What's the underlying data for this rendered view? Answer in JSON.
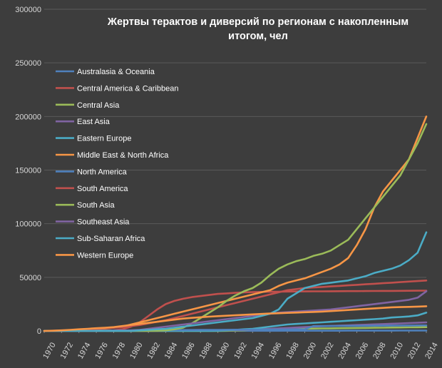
{
  "chart_data": {
    "type": "line",
    "title_line1": "Жертвы терактов и диверсий по регионам с накопленным",
    "title_line2": "итогом, чел",
    "ylim": [
      0,
      300000
    ],
    "y_ticks": [
      0,
      50000,
      100000,
      150000,
      200000,
      250000,
      300000
    ],
    "y_tick_labels": [
      "0",
      "50000",
      "100000",
      "150000",
      "200000",
      "250000",
      "300000"
    ],
    "x_tick_labels": [
      "1970",
      "1972",
      "1974",
      "1976",
      "1978",
      "1980",
      "1982",
      "1984",
      "1986",
      "1988",
      "1990",
      "1992",
      "1994",
      "1996",
      "1998",
      "2000",
      "2002",
      "2004",
      "2006",
      "2008",
      "2010",
      "2012",
      "2014"
    ],
    "x": [
      1970,
      1971,
      1972,
      1973,
      1974,
      1975,
      1976,
      1977,
      1978,
      1979,
      1980,
      1981,
      1982,
      1983,
      1984,
      1985,
      1986,
      1987,
      1988,
      1989,
      1990,
      1991,
      1992,
      1993,
      1994,
      1995,
      1996,
      1997,
      1998,
      1999,
      2000,
      2001,
      2002,
      2003,
      2004,
      2005,
      2006,
      2007,
      2008,
      2009,
      2010,
      2011,
      2012,
      2013,
      2014
    ],
    "series": [
      {
        "name": "Australasia & Oceania",
        "color": "#4f81bd",
        "values": [
          0,
          0,
          0,
          0,
          0,
          0,
          0,
          0,
          0,
          0,
          0,
          0,
          10,
          20,
          30,
          40,
          50,
          60,
          70,
          80,
          90,
          100,
          110,
          120,
          130,
          140,
          150,
          160,
          170,
          180,
          190,
          200,
          210,
          220,
          230,
          240,
          250,
          260,
          270,
          280,
          290,
          300,
          310,
          320,
          330
        ]
      },
      {
        "name": "Central America & Caribbean",
        "color": "#c0504d",
        "values": [
          0,
          0,
          0,
          0,
          0,
          0,
          100,
          300,
          600,
          1500,
          4000,
          8000,
          14000,
          20000,
          25000,
          28000,
          30000,
          31500,
          32500,
          33500,
          34500,
          35000,
          35500,
          36000,
          36200,
          36400,
          36500,
          36600,
          36700,
          36800,
          36850,
          36900,
          36950,
          37000,
          37050,
          37100,
          37150,
          37200,
          37250,
          37300,
          37350,
          37400,
          37450,
          37500,
          37550
        ]
      },
      {
        "name": "Central Asia",
        "color": "#9bbb59",
        "values": [
          0,
          0,
          0,
          0,
          0,
          0,
          0,
          0,
          0,
          0,
          0,
          0,
          0,
          0,
          0,
          0,
          0,
          0,
          0,
          0,
          0,
          100,
          300,
          600,
          1200,
          1500,
          1700,
          1800,
          1900,
          2000,
          2100,
          2200,
          2300,
          2400,
          2500,
          2600,
          2700,
          2800,
          2900,
          3000,
          3100,
          3200,
          3300,
          3400,
          3500
        ]
      },
      {
        "name": "East Asia",
        "color": "#8064a2",
        "values": [
          0,
          0,
          0,
          0,
          0,
          0,
          0,
          0,
          0,
          0,
          0,
          0,
          0,
          0,
          50,
          100,
          200,
          300,
          400,
          500,
          600,
          700,
          800,
          900,
          1000,
          1500,
          2000,
          2400,
          2800,
          3200,
          3600,
          4000,
          4300,
          4600,
          4900,
          5200,
          5500,
          5800,
          6100,
          6400,
          6700,
          7000,
          7300,
          7600,
          7900
        ]
      },
      {
        "name": "Eastern Europe",
        "color": "#4bacc6",
        "values": [
          0,
          0,
          0,
          0,
          0,
          0,
          0,
          0,
          0,
          0,
          0,
          0,
          0,
          0,
          0,
          0,
          0,
          0,
          0,
          0,
          200,
          500,
          1000,
          1500,
          2000,
          3000,
          4000,
          5000,
          6000,
          6500,
          7000,
          7500,
          8000,
          8500,
          9000,
          9500,
          10000,
          10500,
          11000,
          11500,
          12500,
          13000,
          13500,
          14500,
          17000
        ]
      },
      {
        "name": "Middle East & North Africa",
        "color": "#f79646",
        "values": [
          0,
          100,
          200,
          400,
          700,
          1000,
          1500,
          2200,
          3000,
          4000,
          6000,
          8000,
          10000,
          12000,
          14000,
          16000,
          18000,
          20000,
          22000,
          24000,
          26000,
          28000,
          30000,
          32000,
          34000,
          36000,
          38000,
          42000,
          45000,
          47000,
          49000,
          52000,
          55000,
          58000,
          62000,
          68000,
          80000,
          95000,
          115000,
          130000,
          140000,
          150000,
          160000,
          180000,
          200000
        ]
      },
      {
        "name": "North America",
        "color": "#4f81bd",
        "values": [
          0,
          50,
          100,
          150,
          200,
          250,
          300,
          350,
          400,
          450,
          500,
          550,
          600,
          650,
          700,
          750,
          800,
          850,
          900,
          950,
          1000,
          1050,
          1100,
          1150,
          1200,
          1250,
          1300,
          1350,
          1400,
          1450,
          1500,
          4500,
          4550,
          4600,
          4650,
          4700,
          4750,
          4800,
          4850,
          4900,
          4950,
          5000,
          5050,
          5100,
          5150
        ]
      },
      {
        "name": "South America",
        "color": "#c0504d",
        "values": [
          0,
          100,
          300,
          600,
          1000,
          1500,
          2000,
          2500,
          3000,
          3500,
          4500,
          5500,
          7000,
          8500,
          10000,
          12000,
          14000,
          16000,
          18000,
          20000,
          22000,
          24000,
          26000,
          28000,
          30000,
          32000,
          34000,
          36000,
          38000,
          39000,
          40000,
          40500,
          41000,
          41500,
          42000,
          42500,
          43000,
          43500,
          44000,
          44500,
          45000,
          45500,
          46000,
          46500,
          47000
        ]
      },
      {
        "name": "South Asia",
        "color": "#9bbb59",
        "values": [
          0,
          0,
          0,
          0,
          0,
          0,
          0,
          0,
          0,
          0,
          0,
          0,
          0,
          100,
          500,
          1500,
          3000,
          7000,
          12000,
          17000,
          22000,
          28000,
          33000,
          37000,
          40000,
          45000,
          52000,
          58000,
          62000,
          65000,
          67000,
          70000,
          72000,
          75000,
          80000,
          85000,
          95000,
          105000,
          115000,
          125000,
          135000,
          145000,
          160000,
          175000,
          193000
        ]
      },
      {
        "name": "Southeast Asia",
        "color": "#8064a2",
        "values": [
          0,
          0,
          0,
          0,
          0,
          0,
          0,
          0,
          100,
          300,
          500,
          1000,
          2000,
          3000,
          4000,
          5000,
          6000,
          7000,
          8000,
          9000,
          10000,
          11000,
          12000,
          13000,
          14000,
          15000,
          16000,
          17000,
          17500,
          18000,
          18500,
          19000,
          19500,
          20000,
          21000,
          22000,
          23000,
          24000,
          25000,
          26000,
          27000,
          28000,
          29000,
          31000,
          37000
        ]
      },
      {
        "name": "Sub-Saharan Africa",
        "color": "#4bacc6",
        "values": [
          0,
          0,
          0,
          0,
          0,
          0,
          0,
          0,
          0,
          0,
          0,
          500,
          1000,
          1500,
          2000,
          3000,
          4000,
          5000,
          6000,
          7000,
          8000,
          9000,
          10000,
          11000,
          12000,
          14000,
          16000,
          20000,
          30000,
          35000,
          40000,
          42000,
          44000,
          45000,
          46000,
          47000,
          49000,
          51000,
          54000,
          56000,
          58000,
          61000,
          66000,
          73000,
          92000
        ]
      },
      {
        "name": "Western Europe",
        "color": "#f79646",
        "values": [
          0,
          200,
          500,
          1000,
          1500,
          2000,
          2500,
          3000,
          3500,
          4500,
          5500,
          6500,
          7500,
          8500,
          9500,
          10500,
          11500,
          12200,
          12800,
          13300,
          13800,
          14200,
          14600,
          15000,
          15400,
          15800,
          16200,
          16500,
          16800,
          17100,
          17400,
          17700,
          18000,
          18500,
          19000,
          19500,
          20000,
          20500,
          21000,
          21500,
          22000,
          22200,
          22400,
          22700,
          23000
        ]
      }
    ]
  }
}
